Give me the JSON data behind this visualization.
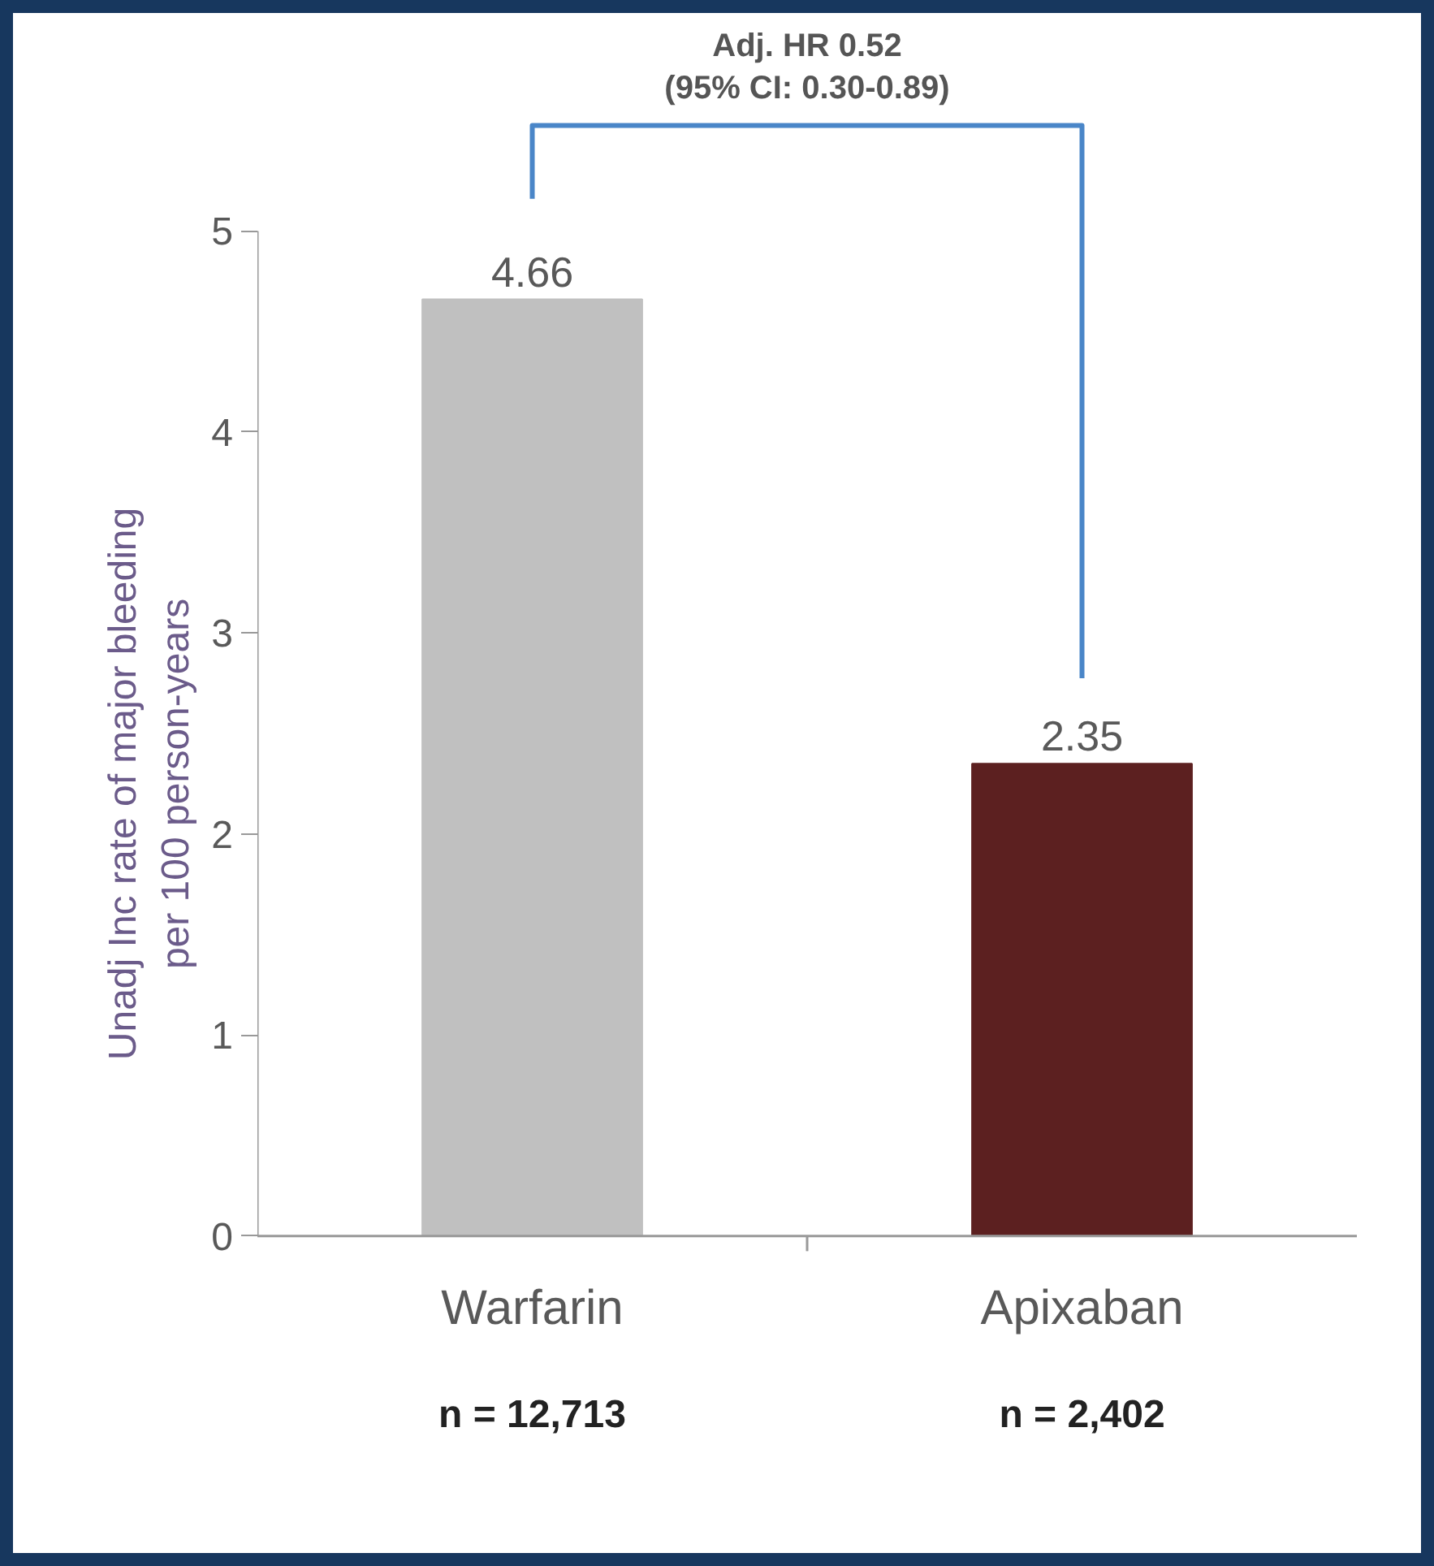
{
  "chart_data": {
    "type": "bar",
    "ylabel": "Unadj Inc rate of major bleeding\nper 100 person-years",
    "categories": [
      "Warfarin",
      "Apixaban"
    ],
    "values": [
      4.66,
      2.35
    ],
    "colors": [
      "#c0c0c0",
      "#5c2020"
    ],
    "ylim": [
      0,
      5
    ],
    "yticks": [
      0,
      1,
      2,
      3,
      4,
      5
    ],
    "grid": false,
    "data_labels": true,
    "annotations": [
      "Adj. HR 0.52\n(95% CI: 0.30-0.89)",
      "n = 12,713",
      "n = 2,402"
    ]
  }
}
